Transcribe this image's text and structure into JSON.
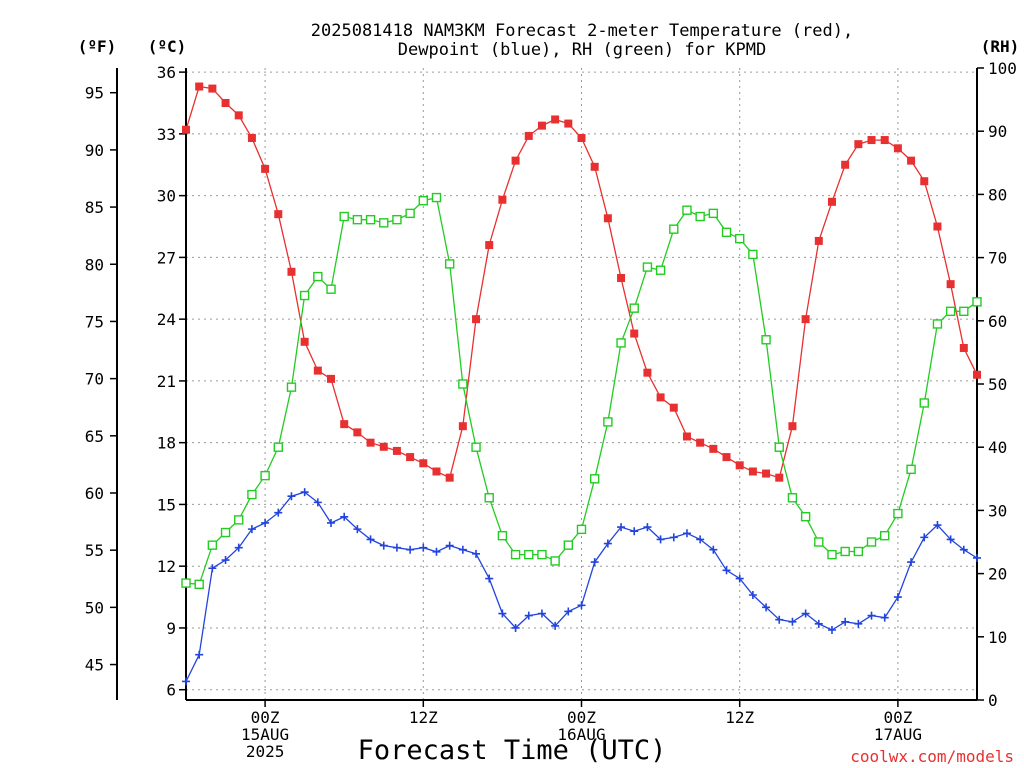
{
  "title_line1": "2025081418 NAM3KM Forecast 2-meter Temperature (red),",
  "title_line2": "Dewpoint (blue), RH (green) for KPMD",
  "xlabel": "Forecast Time (UTC)",
  "credit": "coolwx.com/models",
  "units": {
    "fahrenheit": "(ºF)",
    "celsius": "(ºC)",
    "rh": "(RH)"
  },
  "chart_data": {
    "type": "line",
    "x_step_hours": 3,
    "x_start": "2025-08-14 18Z",
    "x_end": "2025-08-17 06Z",
    "x_ticks": [
      {
        "x": 2,
        "line1": "00Z",
        "line2": "15AUG",
        "line3": "2025"
      },
      {
        "x": 14,
        "line1": "12Z",
        "line2": "",
        "line3": ""
      },
      {
        "x": 26,
        "line1": "00Z",
        "line2": "16AUG",
        "line3": ""
      },
      {
        "x": 38,
        "line1": "12Z",
        "line2": "",
        "line3": ""
      },
      {
        "x": 50,
        "line1": "00Z",
        "line2": "17AUG",
        "line3": ""
      }
    ],
    "xlim": [
      -4,
      56
    ],
    "celsius_axis": {
      "ylim": [
        5.5,
        36.2
      ],
      "ticks": [
        6,
        9,
        12,
        15,
        18,
        21,
        24,
        27,
        30,
        33,
        36
      ]
    },
    "fahrenheit_axis": {
      "ticks": [
        45,
        50,
        55,
        60,
        65,
        70,
        75,
        80,
        85,
        90,
        95
      ]
    },
    "rh_axis": {
      "ylim": [
        0,
        100
      ],
      "ticks": [
        0,
        10,
        20,
        30,
        40,
        50,
        60,
        70,
        80,
        90,
        100
      ]
    },
    "series": [
      {
        "name": "Temperature",
        "axis": "celsius",
        "color": "#e83030",
        "marker": "filled-square",
        "x": [
          -4,
          -3,
          -2,
          -1,
          0,
          1,
          2,
          3,
          4,
          5,
          6,
          7,
          8,
          9,
          10,
          11,
          12,
          13,
          14,
          15,
          16,
          17,
          18,
          19,
          20,
          21,
          22,
          23,
          24,
          25,
          26,
          27,
          28,
          29,
          30,
          31,
          32,
          33,
          34,
          35,
          36,
          37,
          38,
          39,
          40,
          41,
          42,
          43,
          44,
          45,
          46,
          47,
          48,
          49,
          50,
          51,
          52,
          53,
          54,
          55,
          56
        ],
        "values": [
          33.2,
          35.3,
          35.2,
          34.5,
          33.9,
          32.8,
          31.3,
          29.1,
          26.3,
          22.9,
          21.5,
          21.1,
          18.9,
          18.5,
          18.0,
          17.8,
          17.6,
          17.3,
          17.0,
          16.6,
          16.3,
          18.8,
          24.0,
          27.6,
          29.8,
          31.7,
          32.9,
          33.4,
          33.7,
          33.5,
          32.8,
          31.4,
          28.9,
          26.0,
          23.3,
          21.4,
          20.2,
          19.7,
          18.3,
          18.0,
          17.7,
          17.3,
          16.9,
          16.6,
          16.5,
          16.3,
          18.8,
          24.0,
          27.8,
          29.7,
          31.5,
          32.5,
          32.7,
          32.7,
          32.3,
          31.7,
          30.7,
          28.5,
          25.7,
          22.6,
          21.3
        ]
      },
      {
        "name": "Dewpoint",
        "axis": "celsius",
        "color": "#2244dd",
        "marker": "plus",
        "x": [
          -4,
          -3,
          -2,
          -1,
          0,
          1,
          2,
          3,
          4,
          5,
          6,
          7,
          8,
          9,
          10,
          11,
          12,
          13,
          14,
          15,
          16,
          17,
          18,
          19,
          20,
          21,
          22,
          23,
          24,
          25,
          26,
          27,
          28,
          29,
          30,
          31,
          32,
          33,
          34,
          35,
          36,
          37,
          38,
          39,
          40,
          41,
          42,
          43,
          44,
          45,
          46,
          47,
          48,
          49,
          50,
          51,
          52,
          53,
          54,
          55,
          56
        ],
        "values": [
          6.4,
          7.7,
          11.9,
          12.3,
          12.9,
          13.8,
          14.1,
          14.6,
          15.4,
          15.6,
          15.1,
          14.1,
          14.4,
          13.8,
          13.3,
          13.0,
          12.9,
          12.8,
          12.9,
          12.7,
          13.0,
          12.8,
          12.6,
          11.4,
          9.7,
          9.0,
          9.6,
          9.7,
          9.1,
          9.8,
          10.1,
          12.2,
          13.1,
          13.9,
          13.7,
          13.9,
          13.3,
          13.4,
          13.6,
          13.3,
          12.8,
          11.8,
          11.4,
          10.6,
          10.0,
          9.4,
          9.3,
          9.7,
          9.2,
          8.9,
          9.3,
          9.2,
          9.6,
          9.5,
          10.5,
          12.2,
          13.4,
          14.0,
          13.3,
          12.8,
          12.4
        ]
      },
      {
        "name": "RH",
        "axis": "rh",
        "color": "#22cc22",
        "marker": "open-square",
        "x": [
          -4,
          -3,
          -2,
          -1,
          0,
          1,
          2,
          3,
          4,
          5,
          6,
          7,
          8,
          9,
          10,
          11,
          12,
          13,
          14,
          15,
          16,
          17,
          18,
          19,
          20,
          21,
          22,
          23,
          24,
          25,
          26,
          27,
          28,
          29,
          30,
          31,
          32,
          33,
          34,
          35,
          36,
          37,
          38,
          39,
          40,
          41,
          42,
          43,
          44,
          45,
          46,
          47,
          48,
          49,
          50,
          51,
          52,
          53,
          54,
          55,
          56
        ],
        "values": [
          18.5,
          18.3,
          24.5,
          26.5,
          28.5,
          32.5,
          35.5,
          40.0,
          49.5,
          64.0,
          67.0,
          65.0,
          76.5,
          76.0,
          76.0,
          75.5,
          76.0,
          77.0,
          79.0,
          79.5,
          69.0,
          50.0,
          40.0,
          32.0,
          26.0,
          23.0,
          23.0,
          23.0,
          22.0,
          24.5,
          27.0,
          35.0,
          44.0,
          56.5,
          62.0,
          68.5,
          68.0,
          74.5,
          77.5,
          76.5,
          77.0,
          74.0,
          73.0,
          70.5,
          57.0,
          40.0,
          32.0,
          29.0,
          25.0,
          23.0,
          23.5,
          23.5,
          25.0,
          26.0,
          29.5,
          36.5,
          47.0,
          59.5,
          61.5,
          61.5,
          63.0
        ]
      }
    ]
  }
}
